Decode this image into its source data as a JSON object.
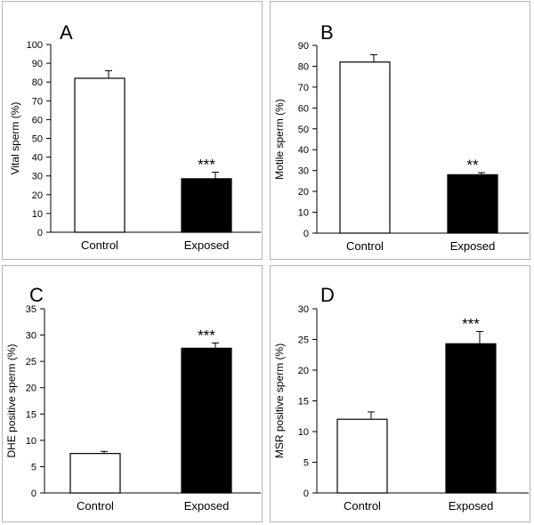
{
  "chart_data": [
    {
      "type": "bar",
      "panel": "A",
      "categories": [
        "Control",
        "Exposed"
      ],
      "values": [
        82,
        28.5
      ],
      "errors": [
        4,
        3.5
      ],
      "bar_colors": [
        "#ffffff",
        "#000000"
      ],
      "ylabel": "Vital sperm (%)",
      "ylim": [
        0,
        100
      ],
      "yticks": [
        0,
        10,
        20,
        30,
        40,
        50,
        60,
        70,
        80,
        90,
        100
      ],
      "annotations": [
        "",
        "***"
      ]
    },
    {
      "type": "bar",
      "panel": "B",
      "categories": [
        "Control",
        "Exposed"
      ],
      "values": [
        82,
        28
      ],
      "errors": [
        3.5,
        1
      ],
      "bar_colors": [
        "#ffffff",
        "#000000"
      ],
      "ylabel": "Motile sperm (%)",
      "ylim": [
        0,
        90
      ],
      "yticks": [
        0,
        10,
        20,
        30,
        40,
        50,
        60,
        70,
        80,
        90
      ],
      "annotations": [
        "",
        "**"
      ]
    },
    {
      "type": "bar",
      "panel": "C",
      "categories": [
        "Control",
        "Exposed"
      ],
      "values": [
        7.5,
        27.5
      ],
      "errors": [
        0.4,
        1
      ],
      "bar_colors": [
        "#ffffff",
        "#000000"
      ],
      "ylabel": "DHE positive sperm (%)",
      "ylim": [
        0,
        35
      ],
      "yticks": [
        0,
        5,
        10,
        15,
        20,
        25,
        30,
        35
      ],
      "annotations": [
        "",
        "***"
      ]
    },
    {
      "type": "bar",
      "panel": "D",
      "categories": [
        "Control",
        "Exposed"
      ],
      "values": [
        12,
        24.3
      ],
      "errors": [
        1.2,
        2
      ],
      "bar_colors": [
        "#ffffff",
        "#000000"
      ],
      "ylabel": "MSR positive sperm (%)",
      "ylim": [
        0,
        30
      ],
      "yticks": [
        0,
        5,
        10,
        15,
        20,
        25,
        30
      ],
      "annotations": [
        "",
        "***"
      ]
    }
  ]
}
